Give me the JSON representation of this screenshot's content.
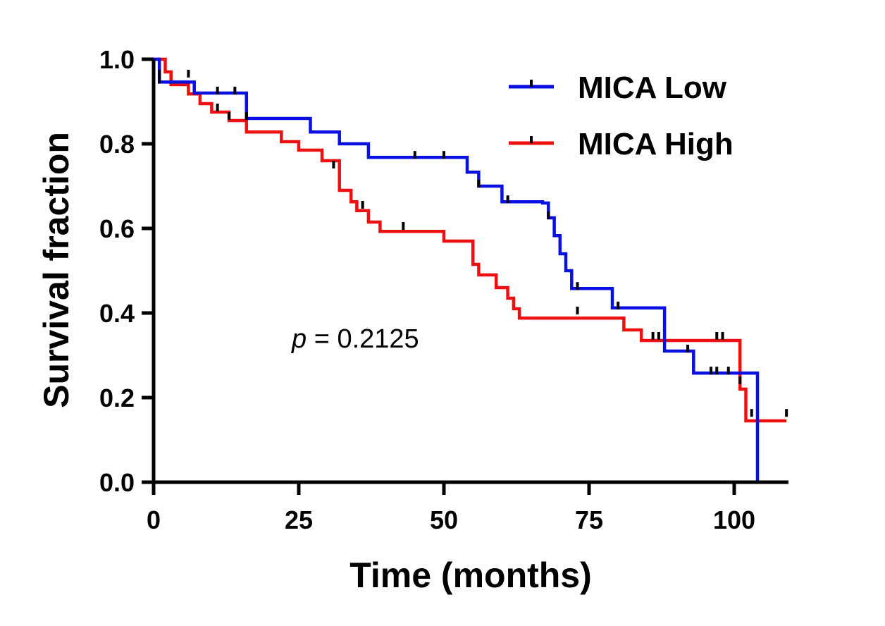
{
  "chart_data": {
    "type": "line",
    "subtype": "kaplan-meier step",
    "xlabel": "Time (months)",
    "ylabel": "Survival fraction",
    "xlim": [
      0,
      110
    ],
    "ylim": [
      0,
      1
    ],
    "xticks": [
      0,
      25,
      50,
      75,
      100
    ],
    "xtick_labels": [
      "0",
      "25",
      "50",
      "75",
      "100"
    ],
    "yticks": [
      0,
      0.2,
      0.4,
      0.6,
      0.8,
      1.0
    ],
    "ytick_labels": [
      "0.0",
      "0.2",
      "0.4",
      "0.6",
      "0.8",
      "1.0"
    ],
    "grid": false,
    "legend_position": "top-right",
    "annotation": {
      "italic": "p",
      "text": " = 0.2125"
    },
    "series": [
      {
        "name": "MICA Low",
        "color": "#0a10e0",
        "x": [
          0,
          1,
          1,
          7,
          7,
          16,
          16,
          27,
          27,
          32,
          32,
          37,
          37,
          54,
          54,
          56,
          56,
          60,
          60,
          67,
          67,
          68,
          68,
          69,
          69,
          70,
          70,
          71,
          71,
          72,
          72,
          79,
          79,
          88,
          88,
          93,
          93,
          104,
          104
        ],
        "y": [
          1.0,
          1.0,
          0.946,
          0.946,
          0.92,
          0.92,
          0.86,
          0.86,
          0.828,
          0.828,
          0.8,
          0.8,
          0.768,
          0.768,
          0.733,
          0.733,
          0.7,
          0.7,
          0.663,
          0.663,
          0.66,
          0.66,
          0.625,
          0.625,
          0.583,
          0.583,
          0.54,
          0.54,
          0.5,
          0.5,
          0.458,
          0.458,
          0.412,
          0.412,
          0.31,
          0.31,
          0.258,
          0.258,
          0.0
        ],
        "censor_x": [
          1,
          6,
          11,
          14,
          16,
          45,
          50,
          56,
          61,
          68,
          73,
          80,
          92,
          96,
          97,
          99
        ],
        "censor_y": [
          0.946,
          0.96,
          0.92,
          0.92,
          0.86,
          0.768,
          0.768,
          0.7,
          0.663,
          0.625,
          0.458,
          0.412,
          0.31,
          0.258,
          0.258,
          0.258
        ]
      },
      {
        "name": "MICA High",
        "color": "#ee1010",
        "x": [
          0,
          2,
          2,
          3,
          3,
          6,
          6,
          8,
          8,
          10,
          10,
          13,
          13,
          16,
          16,
          22,
          22,
          25,
          25,
          29,
          29,
          32,
          32,
          34,
          34,
          35,
          35,
          37,
          37,
          39,
          39,
          41,
          41,
          50,
          50,
          55,
          55,
          56,
          56,
          59,
          59,
          61,
          61,
          62,
          62,
          63,
          63,
          81,
          81,
          84,
          84,
          101,
          101,
          102,
          102,
          109
        ],
        "y": [
          1.0,
          1.0,
          0.97,
          0.97,
          0.94,
          0.94,
          0.918,
          0.918,
          0.895,
          0.895,
          0.875,
          0.875,
          0.855,
          0.855,
          0.828,
          0.828,
          0.805,
          0.805,
          0.785,
          0.785,
          0.76,
          0.76,
          0.69,
          0.69,
          0.663,
          0.663,
          0.642,
          0.642,
          0.615,
          0.615,
          0.593,
          0.593,
          0.593,
          0.593,
          0.57,
          0.57,
          0.515,
          0.515,
          0.49,
          0.49,
          0.46,
          0.46,
          0.435,
          0.435,
          0.41,
          0.41,
          0.388,
          0.388,
          0.36,
          0.36,
          0.335,
          0.335,
          0.22,
          0.22,
          0.145,
          0.145
        ],
        "censor_x": [
          1,
          11,
          13,
          31,
          36,
          43,
          73,
          86,
          87,
          97,
          98,
          101,
          103,
          109
        ],
        "censor_y": [
          0.96,
          0.88,
          0.86,
          0.745,
          0.65,
          0.6,
          0.4,
          0.34,
          0.34,
          0.34,
          0.34,
          0.235,
          0.158,
          0.158
        ]
      }
    ]
  }
}
